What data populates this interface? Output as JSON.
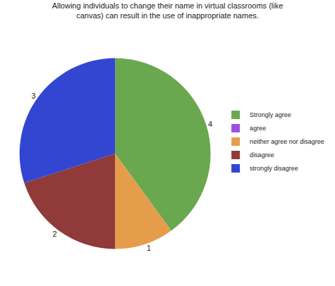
{
  "chart_data": {
    "type": "pie",
    "title": "Allowing individuals to change their name in virtual classrooms (like canvas) can result in the use of inappropriate names.",
    "categories": [
      "Strongly agree",
      "agree",
      "neither agree nor disagree",
      "disagree",
      "strongly disagree"
    ],
    "values": [
      4,
      0,
      1,
      2,
      3
    ],
    "colors": [
      "#6aa84f",
      "#9b51e0",
      "#e69d4b",
      "#903a3a",
      "#3346d1"
    ],
    "data_labels": true,
    "legend": "right"
  }
}
